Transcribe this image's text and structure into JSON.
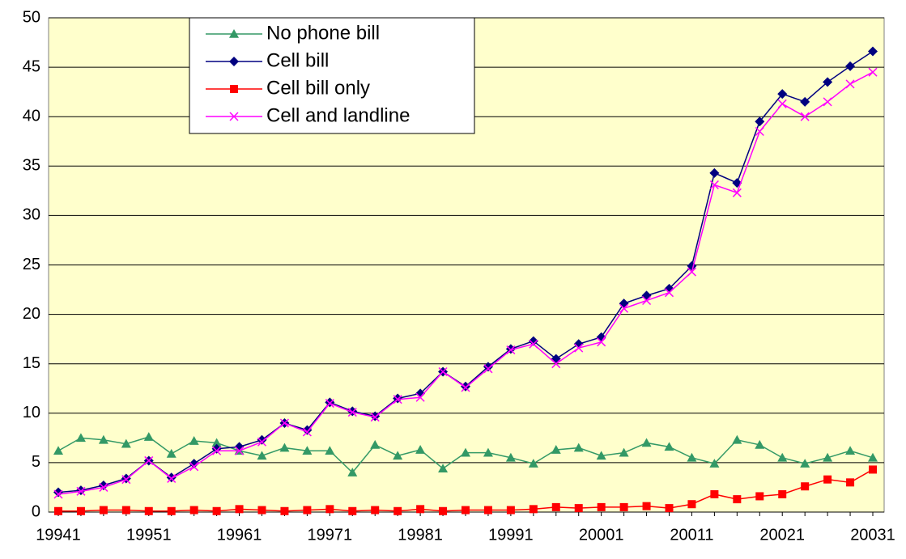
{
  "chart_data": {
    "type": "line",
    "categories": [
      "19941",
      null,
      null,
      null,
      "19951",
      null,
      null,
      null,
      "19961",
      null,
      null,
      null,
      "19971",
      null,
      null,
      null,
      "19981",
      null,
      null,
      null,
      "19991",
      null,
      null,
      null,
      "20001",
      null,
      null,
      null,
      "20011",
      null,
      null,
      null,
      "20021",
      null,
      null,
      null,
      "20031"
    ],
    "series": [
      {
        "name": "No phone bill",
        "color": "#339966",
        "marker": "triangle",
        "values": [
          6.2,
          7.5,
          7.3,
          6.9,
          7.6,
          5.9,
          7.2,
          7.0,
          6.2,
          5.7,
          6.5,
          6.2,
          6.2,
          4.0,
          6.8,
          5.7,
          6.3,
          4.4,
          6.0,
          6.0,
          5.5,
          4.9,
          6.3,
          6.5,
          5.7,
          6.0,
          7.0,
          6.6,
          5.5,
          4.9,
          7.3,
          6.8,
          5.5,
          4.9,
          5.5,
          6.2,
          5.5
        ]
      },
      {
        "name": "Cell bill",
        "color": "#000080",
        "marker": "diamond",
        "values": [
          2.0,
          2.2,
          2.7,
          3.4,
          5.2,
          3.5,
          4.9,
          6.4,
          6.6,
          7.3,
          9.0,
          8.3,
          11.1,
          10.2,
          9.7,
          11.5,
          12.0,
          14.2,
          12.7,
          14.7,
          16.5,
          17.3,
          15.5,
          17.0,
          17.7,
          21.1,
          21.9,
          22.6,
          24.9,
          34.3,
          33.3,
          39.5,
          42.3,
          41.5,
          43.5,
          45.1,
          46.6
        ]
      },
      {
        "name": "Cell bill only",
        "color": "#ff0000",
        "marker": "square",
        "values": [
          0.1,
          0.1,
          0.2,
          0.2,
          0.1,
          0.1,
          0.2,
          0.1,
          0.3,
          0.2,
          0.1,
          0.2,
          0.3,
          0.1,
          0.2,
          0.1,
          0.3,
          0.1,
          0.2,
          0.2,
          0.2,
          0.3,
          0.5,
          0.4,
          0.5,
          0.5,
          0.6,
          0.4,
          0.8,
          1.8,
          1.3,
          1.6,
          1.8,
          2.6,
          3.3,
          3.0,
          4.3
        ]
      },
      {
        "name": "Cell and landline",
        "color": "#ff00ff",
        "marker": "x",
        "values": [
          1.8,
          2.1,
          2.5,
          3.3,
          5.2,
          3.4,
          4.6,
          6.2,
          6.2,
          7.1,
          9.0,
          8.1,
          11.0,
          10.1,
          9.6,
          11.4,
          11.6,
          14.2,
          12.6,
          14.5,
          16.4,
          17.0,
          15.0,
          16.6,
          17.2,
          20.6,
          21.4,
          22.2,
          24.3,
          33.1,
          32.3,
          38.5,
          41.3,
          40.0,
          41.5,
          43.3,
          44.5
        ]
      }
    ],
    "ylim": [
      0,
      50
    ],
    "yticks": [
      0,
      5,
      10,
      15,
      20,
      25,
      30,
      35,
      40,
      45,
      50
    ],
    "grid": true,
    "legend": "upper left",
    "background": "#ffffcc"
  }
}
